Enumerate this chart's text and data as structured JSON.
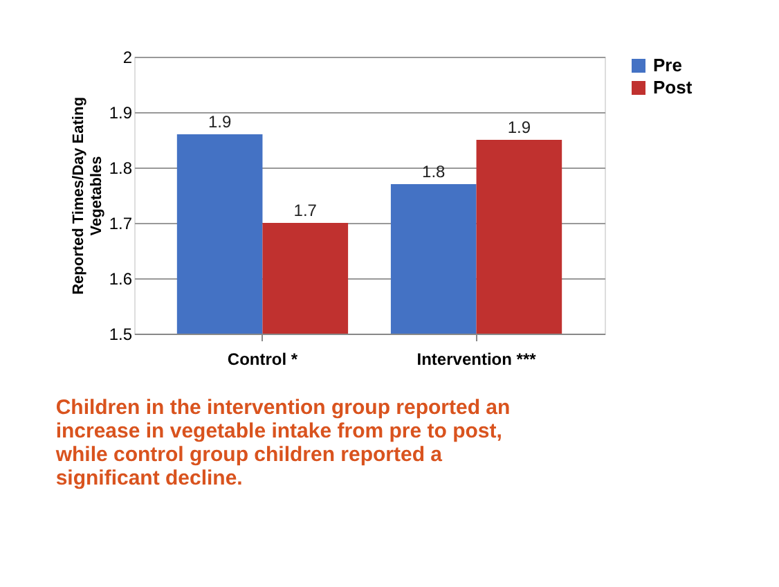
{
  "chart_data": {
    "type": "bar",
    "categories": [
      "Control *",
      "Intervention ***"
    ],
    "series": [
      {
        "name": "Pre",
        "color": "#4472c4",
        "values": [
          1.86,
          1.77
        ],
        "value_labels": [
          "1.9",
          "1.8"
        ]
      },
      {
        "name": "Post",
        "color": "#c0312f",
        "values": [
          1.7,
          1.85
        ],
        "value_labels": [
          "1.7",
          "1.9"
        ]
      }
    ],
    "ylabel": "Reported Times/Day Eating Vegetables",
    "ylim": [
      1.5,
      2
    ],
    "yticks": [
      1.5,
      1.6,
      1.7,
      1.8,
      1.9,
      2
    ],
    "grid": "y",
    "legend": "right",
    "annotations": [
      "Children in the intervention group reported an increase in vegetable intake from pre to post, while control group children reported a significant decline."
    ]
  }
}
